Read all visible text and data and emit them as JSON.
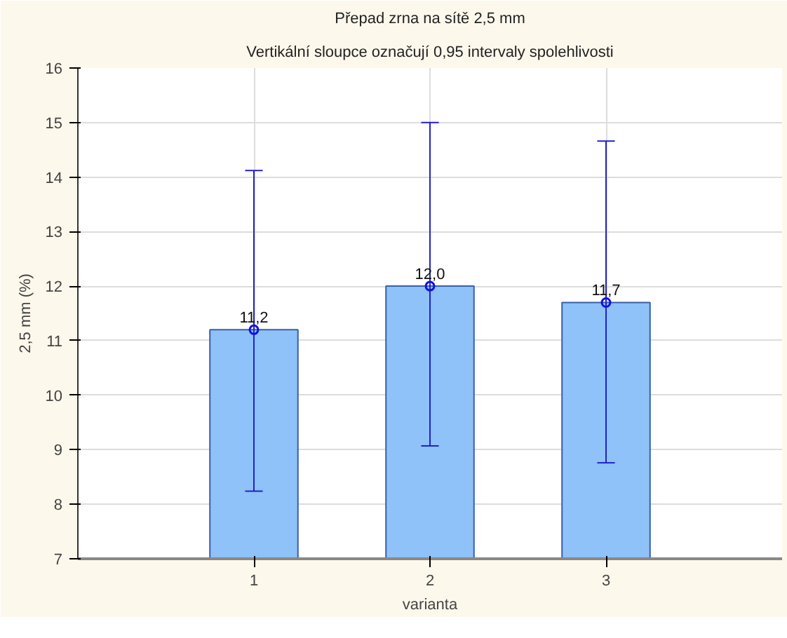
{
  "chart_data": {
    "type": "bar",
    "title": "Přepad zrna na sítě 2,5 mm",
    "subtitle": "Vertikální sloupce označují 0,95 intervaly spolehlivosti",
    "xlabel": "varianta",
    "ylabel": "2,5 mm (%)",
    "categories": [
      "1",
      "2",
      "3"
    ],
    "series": [
      {
        "color": "#8ec2f8",
        "values": [
          11.2,
          12.0,
          11.7
        ],
        "errors": [
          [
            8.24,
            14.12
          ],
          [
            9.07,
            15.0
          ],
          [
            8.76,
            14.66
          ]
        ],
        "value_labels": [
          "11,2",
          "12,0",
          "11,7"
        ]
      },
      {
        "type": "scatter",
        "color": "#1111dd",
        "x": [
          "1",
          "2",
          "3"
        ],
        "values": [
          11.2,
          12.0,
          11.7
        ]
      }
    ],
    "ylim": [
      7,
      16
    ],
    "yticks": [
      7,
      8,
      9,
      10,
      11,
      12,
      13,
      14,
      15,
      16
    ],
    "grid": true,
    "marker": "circle"
  }
}
